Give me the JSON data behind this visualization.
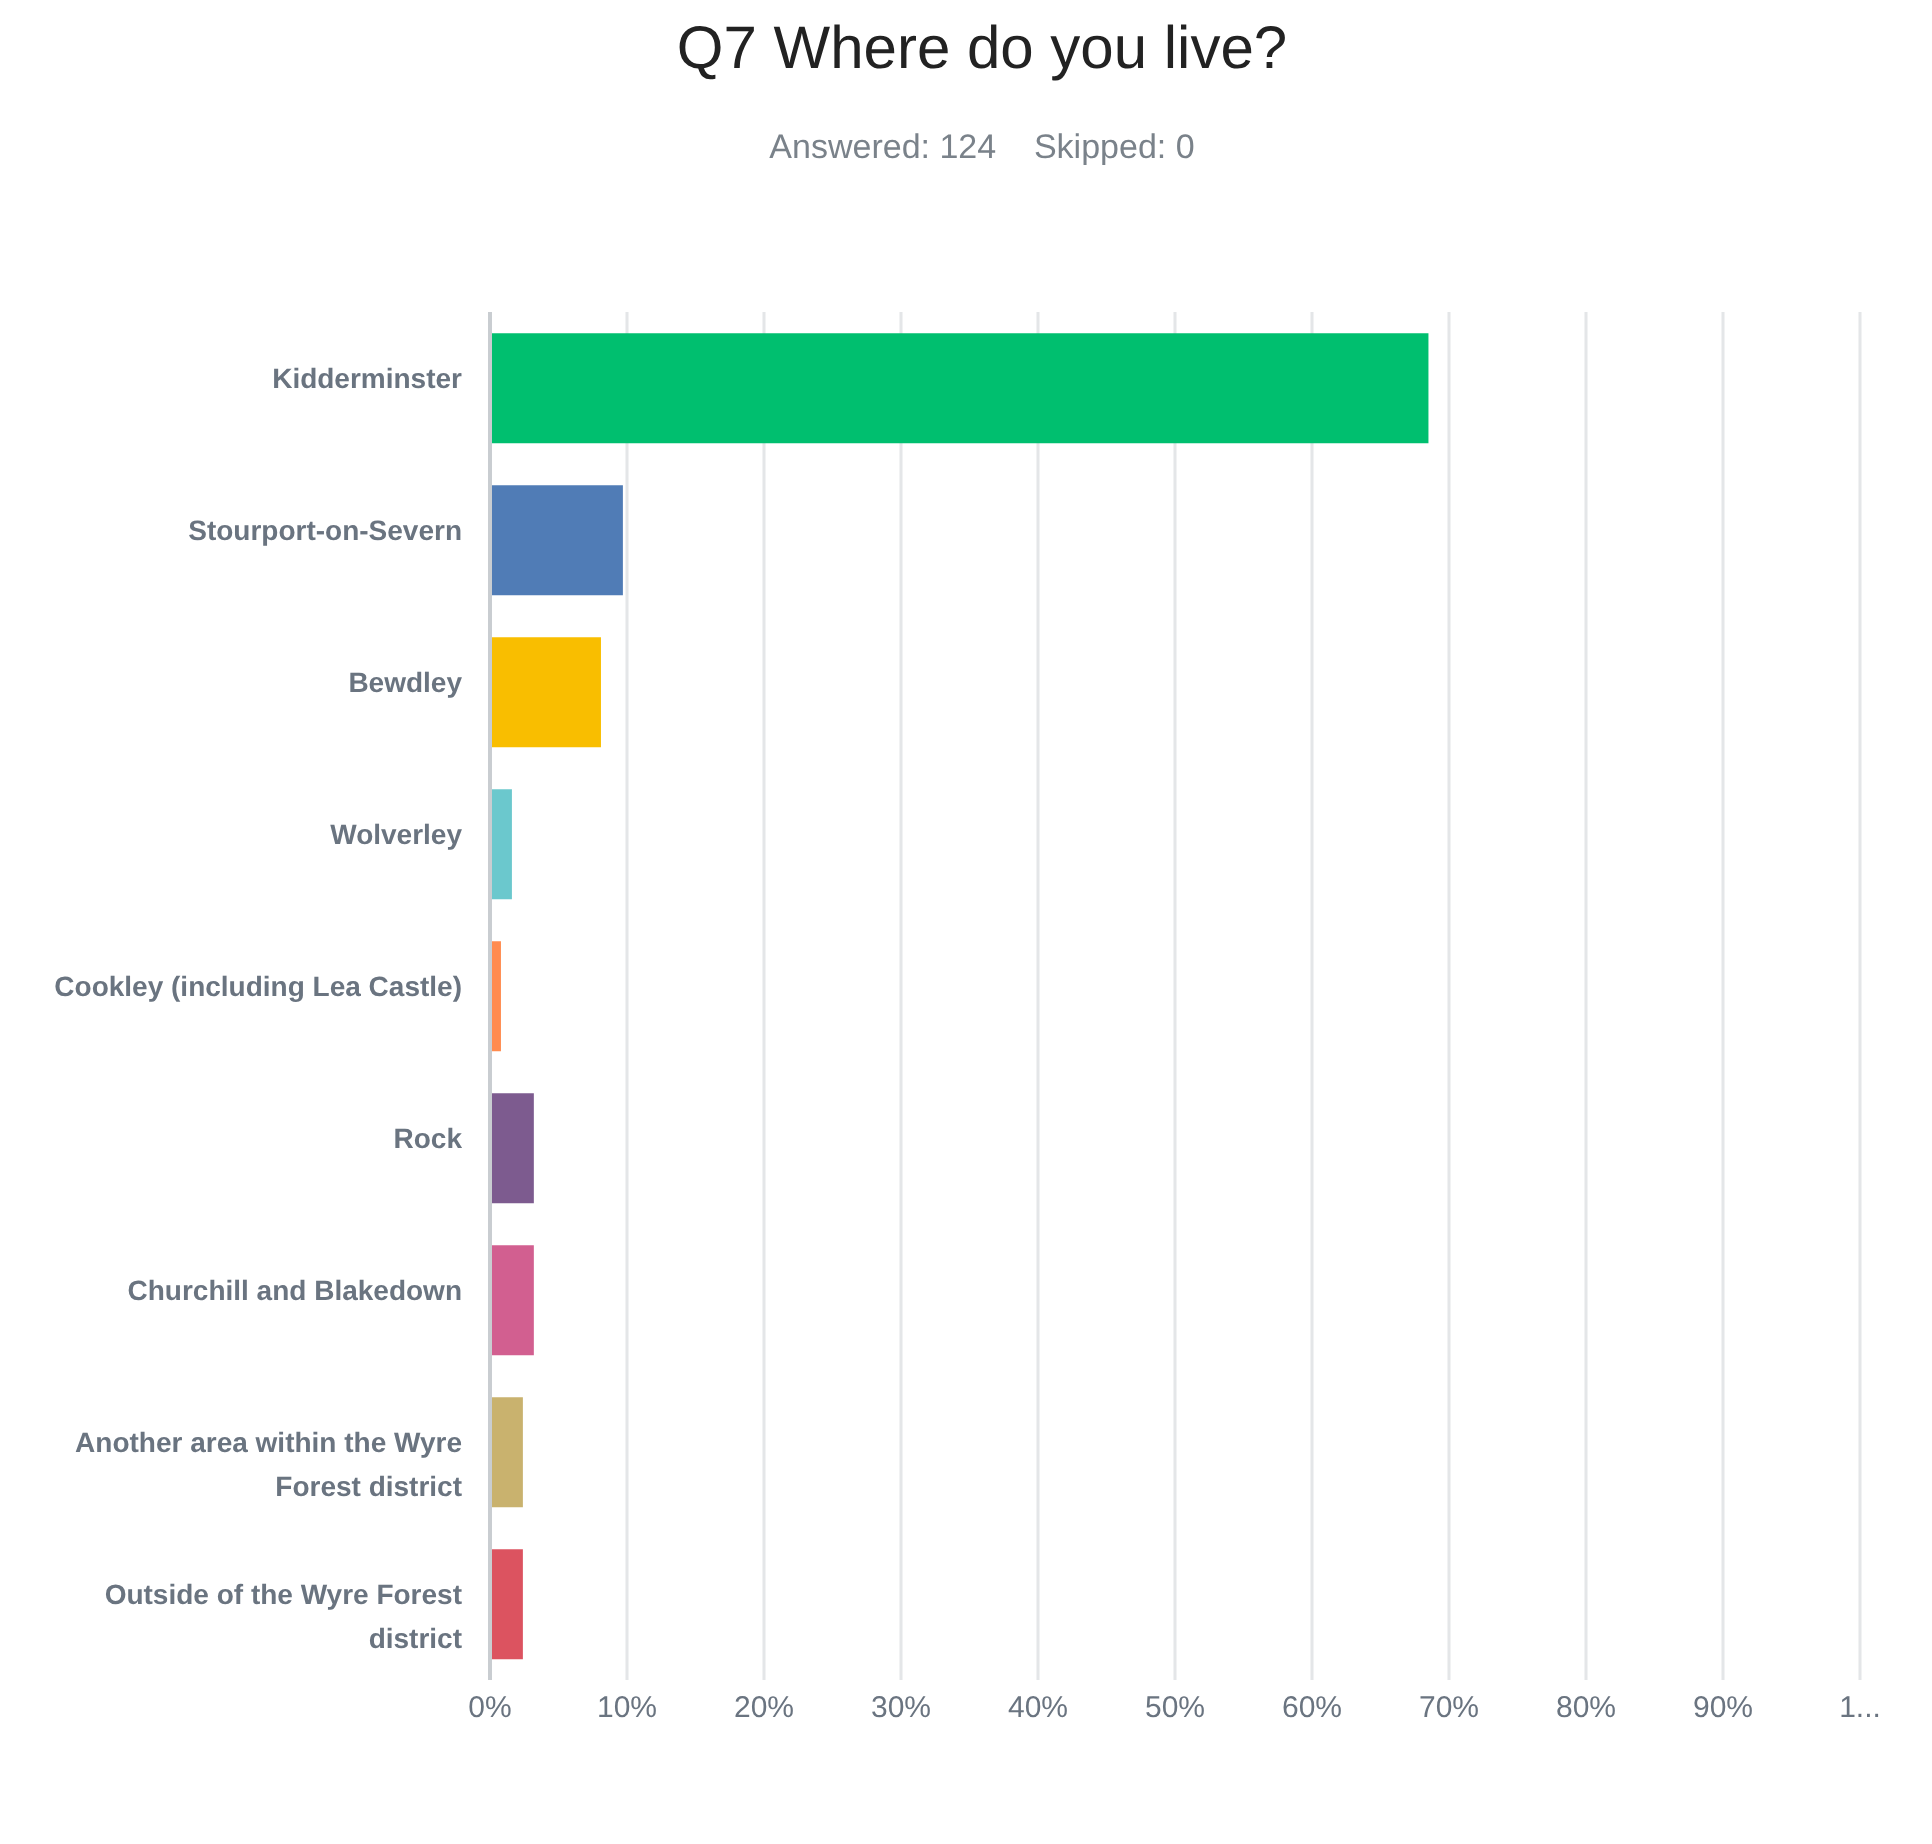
{
  "chart_data": {
    "type": "bar",
    "orientation": "horizontal",
    "title": "Q7 Where do you live?",
    "subtitle": "Answered: 124    Skipped: 0",
    "categories": [
      "Kidderminster",
      "Stourport-on-Severn",
      "Bewdley",
      "Wolverley",
      "Cookley (including Lea Castle)",
      "Rock",
      "Churchill and Blakedown",
      "Another area within the Wyre Forest district",
      "Outside of the Wyre Forest district"
    ],
    "values": [
      68.5,
      9.7,
      8.1,
      1.6,
      0.8,
      3.2,
      3.2,
      2.4,
      2.4
    ],
    "colors": [
      "#00bf6f",
      "#507cb6",
      "#f9be00",
      "#6bc8cd",
      "#ff8b4f",
      "#7d5b8f",
      "#d25f90",
      "#c9b26e",
      "#dc5360"
    ],
    "xlim": [
      0,
      100
    ],
    "xticks": [
      {
        "value": 0,
        "label": "0%"
      },
      {
        "value": 10,
        "label": "10%"
      },
      {
        "value": 20,
        "label": "20%"
      },
      {
        "value": 30,
        "label": "30%"
      },
      {
        "value": 40,
        "label": "40%"
      },
      {
        "value": 50,
        "label": "50%"
      },
      {
        "value": 60,
        "label": "60%"
      },
      {
        "value": 70,
        "label": "70%"
      },
      {
        "value": 80,
        "label": "80%"
      },
      {
        "value": 90,
        "label": "90%"
      },
      {
        "value": 100,
        "label": "1..."
      }
    ],
    "grid": "x"
  }
}
